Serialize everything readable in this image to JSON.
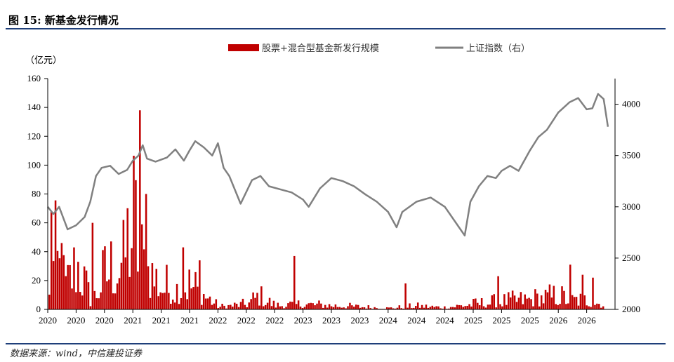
{
  "figure": {
    "title": "图 15: 新基金发行情况",
    "source": "数据来源：wind，中信建投证券"
  },
  "colors": {
    "bar": "#c00000",
    "line": "#808080",
    "rule": "#1f3f7a"
  },
  "chart_data": {
    "type": "bar+line",
    "left_unit_label": "（亿元）",
    "left_axis": {
      "min": 0,
      "max": 160,
      "ticks": [
        0,
        20,
        40,
        60,
        80,
        100,
        120,
        140,
        160
      ]
    },
    "right_axis": {
      "min": 2000,
      "max": 4250,
      "ticks": [
        2000,
        2500,
        3000,
        3500,
        4000
      ]
    },
    "x_tick_labels": [
      "2020",
      "2020",
      "2020",
      "2021",
      "2021",
      "2021",
      "2022",
      "2022",
      "2022",
      "2023",
      "2023",
      "2023",
      "2024",
      "2024",
      "2024",
      "2025",
      "2025",
      "2025",
      "2026",
      "2026"
    ],
    "legend": {
      "bar_label": "股票+混合型基金新发行规模",
      "line_label": "上证指数（右）",
      "placement": "top-center"
    },
    "grid": false,
    "series": [
      {
        "name": "股票+混合型基金新发行规模",
        "axis": "left",
        "type": "bar",
        "anchors": [
          [
            0,
            18
          ],
          [
            0.2,
            78
          ],
          [
            0.6,
            35
          ],
          [
            1.0,
            70
          ],
          [
            1.5,
            10
          ],
          [
            2.0,
            56
          ],
          [
            2.5,
            72
          ],
          [
            3.0,
            130
          ],
          [
            3.3,
            70
          ],
          [
            4.0,
            35
          ],
          [
            4.5,
            30
          ],
          [
            5.0,
            38
          ],
          [
            5.5,
            22
          ],
          [
            6.0,
            4
          ],
          [
            7.0,
            8
          ],
          [
            7.4,
            20
          ],
          [
            8.0,
            6
          ],
          [
            9.0,
            8
          ],
          [
            10.0,
            6
          ],
          [
            11.0,
            4
          ],
          [
            12.0,
            2
          ],
          [
            13.0,
            5
          ],
          [
            14.0,
            3
          ],
          [
            15.0,
            8
          ],
          [
            16.0,
            12
          ],
          [
            17.0,
            15
          ],
          [
            18.0,
            20
          ],
          [
            18.5,
            14
          ],
          [
            19.0,
            14
          ],
          [
            19.6,
            8
          ]
        ],
        "highlights": [
          [
            0.1,
            68
          ],
          [
            0.45,
            46
          ],
          [
            1.55,
            60
          ],
          [
            2.6,
            62
          ],
          [
            3.2,
            138
          ],
          [
            3.45,
            80
          ],
          [
            4.7,
            43
          ],
          [
            5.35,
            34
          ],
          [
            8.7,
            37
          ],
          [
            12.6,
            18
          ],
          [
            15.9,
            23
          ],
          [
            18.45,
            31
          ],
          [
            18.85,
            24
          ],
          [
            19.2,
            22
          ]
        ]
      },
      {
        "name": "上证指数（右）",
        "axis": "right",
        "type": "line",
        "points": [
          [
            0,
            3000
          ],
          [
            0.2,
            2930
          ],
          [
            0.4,
            3000
          ],
          [
            0.7,
            2780
          ],
          [
            1.0,
            2820
          ],
          [
            1.3,
            2900
          ],
          [
            1.5,
            3050
          ],
          [
            1.7,
            3300
          ],
          [
            1.9,
            3380
          ],
          [
            2.2,
            3400
          ],
          [
            2.5,
            3320
          ],
          [
            2.8,
            3360
          ],
          [
            3.0,
            3450
          ],
          [
            3.2,
            3500
          ],
          [
            3.35,
            3600
          ],
          [
            3.5,
            3470
          ],
          [
            3.8,
            3440
          ],
          [
            4.2,
            3480
          ],
          [
            4.5,
            3560
          ],
          [
            4.8,
            3450
          ],
          [
            5.0,
            3550
          ],
          [
            5.2,
            3640
          ],
          [
            5.5,
            3580
          ],
          [
            5.8,
            3500
          ],
          [
            6.0,
            3620
          ],
          [
            6.2,
            3380
          ],
          [
            6.4,
            3300
          ],
          [
            6.8,
            3030
          ],
          [
            7.2,
            3260
          ],
          [
            7.5,
            3300
          ],
          [
            7.8,
            3200
          ],
          [
            8.2,
            3170
          ],
          [
            8.6,
            3140
          ],
          [
            9.0,
            3070
          ],
          [
            9.2,
            3000
          ],
          [
            9.6,
            3180
          ],
          [
            10.0,
            3280
          ],
          [
            10.4,
            3250
          ],
          [
            10.8,
            3200
          ],
          [
            11.2,
            3120
          ],
          [
            11.6,
            3050
          ],
          [
            12.0,
            2950
          ],
          [
            12.3,
            2800
          ],
          [
            12.5,
            2950
          ],
          [
            13.0,
            3050
          ],
          [
            13.5,
            3090
          ],
          [
            14.0,
            3000
          ],
          [
            14.5,
            2800
          ],
          [
            14.7,
            2720
          ],
          [
            14.9,
            3050
          ],
          [
            15.2,
            3200
          ],
          [
            15.5,
            3300
          ],
          [
            15.8,
            3280
          ],
          [
            16.0,
            3350
          ],
          [
            16.3,
            3400
          ],
          [
            16.6,
            3350
          ],
          [
            17.0,
            3550
          ],
          [
            17.3,
            3680
          ],
          [
            17.6,
            3750
          ],
          [
            18.0,
            3920
          ],
          [
            18.4,
            4020
          ],
          [
            18.7,
            4060
          ],
          [
            19.0,
            3950
          ],
          [
            19.2,
            3960
          ],
          [
            19.4,
            4100
          ],
          [
            19.6,
            4050
          ],
          [
            19.75,
            3780
          ]
        ]
      }
    ]
  }
}
